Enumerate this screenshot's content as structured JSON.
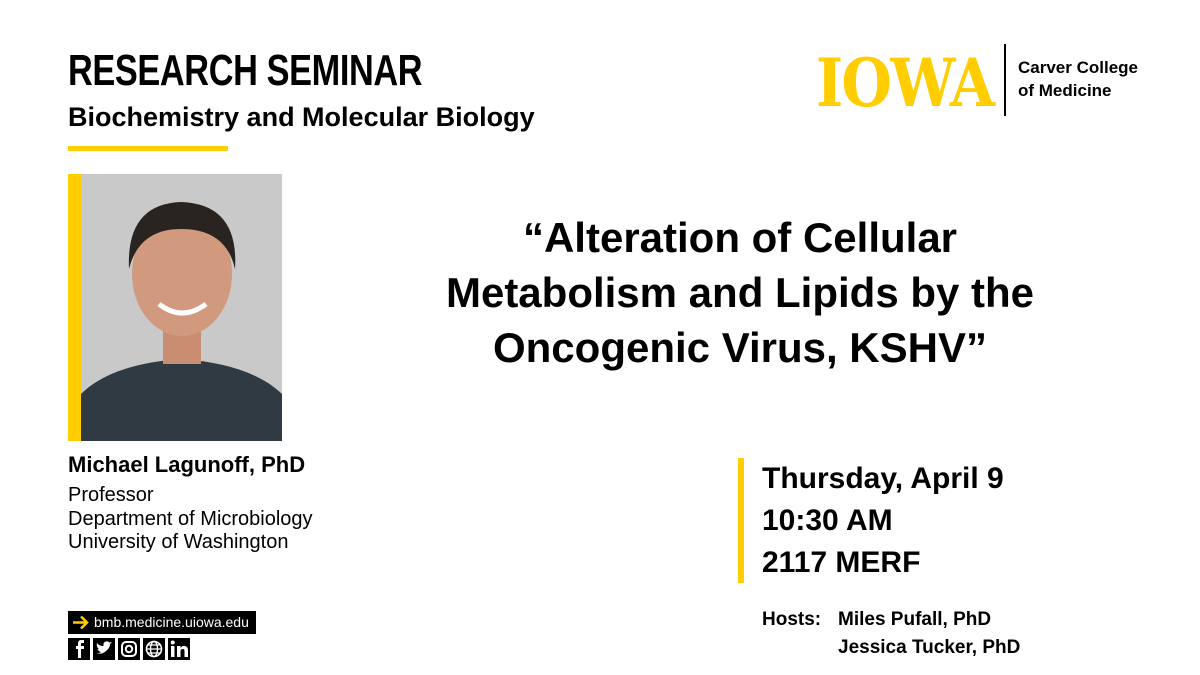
{
  "header": {
    "title": "RESEARCH SEMINAR",
    "subtitle": "Biochemistry and Molecular Biology"
  },
  "logo": {
    "wordmark": "IOWA",
    "college_lines": [
      "Carver College",
      "of Medicine"
    ]
  },
  "speaker": {
    "name": "Michael Lagunoff, PhD",
    "details": [
      "Professor",
      "Department of Microbiology",
      "University of Washington"
    ]
  },
  "talk": {
    "title_lines": [
      "“Alteration of Cellular",
      "Metabolism and Lipids by the",
      "Oncogenic Virus, KSHV”"
    ]
  },
  "event": {
    "lines": [
      "Thursday, April 9",
      "10:30 AM",
      "2117 MERF"
    ]
  },
  "hosts": {
    "label": "Hosts:",
    "names": [
      "Miles Pufall, PhD",
      "Jessica Tucker, PhD"
    ]
  },
  "footer": {
    "url": "bmb.medicine.uiowa.edu"
  }
}
